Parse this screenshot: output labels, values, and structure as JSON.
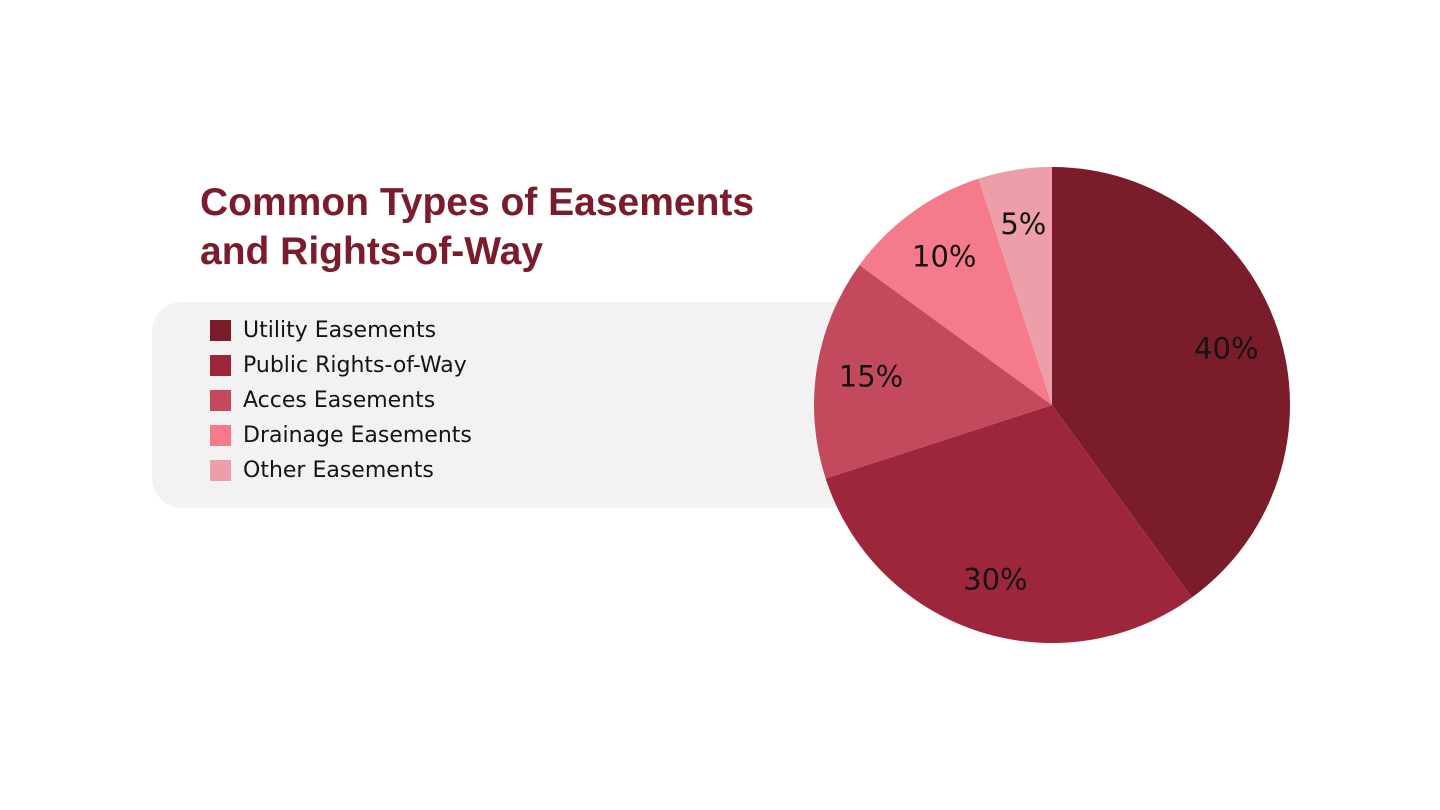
{
  "chart_data": {
    "type": "pie",
    "title_lines": [
      "Common Types of Easements",
      "and Rights-of-Way"
    ],
    "legend_position": "left",
    "slices": [
      {
        "label": "Utility Easements",
        "value": 40,
        "display": "40%",
        "color": "#7b1c2a"
      },
      {
        "label": "Public Rights-of-Way",
        "value": 30,
        "display": "30%",
        "color": "#9e263b"
      },
      {
        "label": "Acces Easements",
        "value": 15,
        "display": "15%",
        "color": "#c24a5c"
      },
      {
        "label": "Drainage Easements",
        "value": 10,
        "display": "10%",
        "color": "#f57a8b"
      },
      {
        "label": "Other Easements",
        "value": 5,
        "display": "5%",
        "color": "#ee9ea8"
      }
    ]
  },
  "colors": {
    "title": "#7b1c2c",
    "legend_panel": "#f2f2f2",
    "background": "#ffffff"
  }
}
